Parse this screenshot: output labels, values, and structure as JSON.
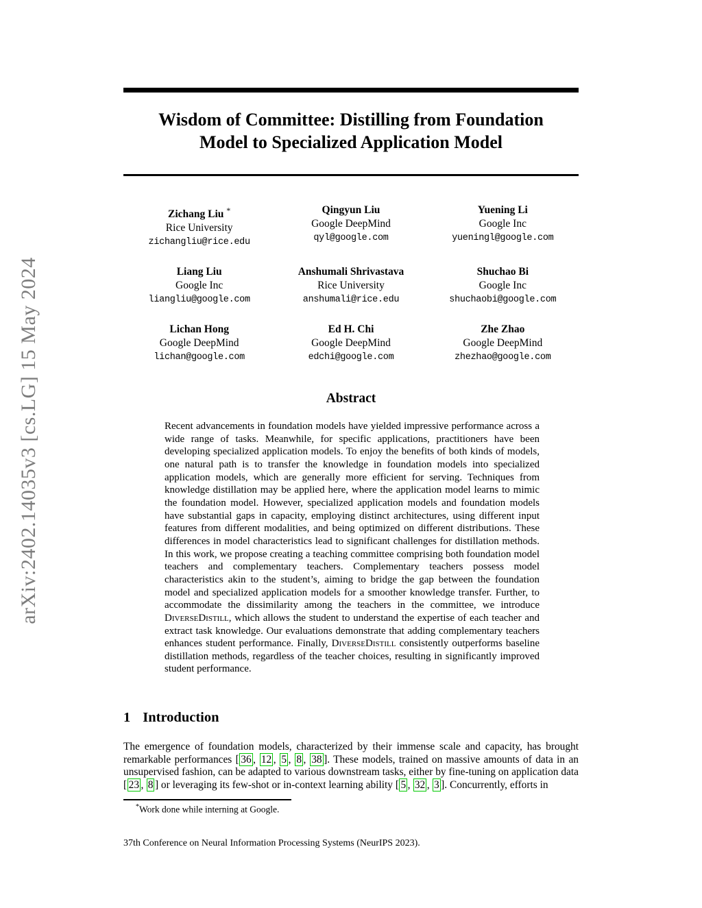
{
  "watermark": "arXiv:2402.14035v3  [cs.LG]  15 May 2024",
  "title": {
    "line1": "Wisdom of Committee: Distilling from Foundation",
    "line2": "Model to Specialized Application Model"
  },
  "authors": [
    {
      "name": "Zichang Liu",
      "mark": "*",
      "affiliation": "Rice University",
      "email": "zichangliu@rice.edu"
    },
    {
      "name": "Qingyun Liu",
      "mark": "",
      "affiliation": "Google DeepMind",
      "email": "qyl@google.com"
    },
    {
      "name": "Yuening Li",
      "mark": "",
      "affiliation": "Google Inc",
      "email": "yueningl@google.com"
    },
    {
      "name": "Liang Liu",
      "mark": "",
      "affiliation": "Google Inc",
      "email": "liangliu@google.com"
    },
    {
      "name": "Anshumali Shrivastava",
      "mark": "",
      "affiliation": "Rice University",
      "email": "anshumali@rice.edu"
    },
    {
      "name": "Shuchao Bi",
      "mark": "",
      "affiliation": "Google Inc",
      "email": "shuchaobi@google.com"
    },
    {
      "name": "Lichan Hong",
      "mark": "",
      "affiliation": "Google DeepMind",
      "email": "lichan@google.com"
    },
    {
      "name": "Ed H. Chi",
      "mark": "",
      "affiliation": "Google DeepMind",
      "email": "edchi@google.com"
    },
    {
      "name": "Zhe Zhao",
      "mark": "",
      "affiliation": "Google DeepMind",
      "email": "zhezhao@google.com"
    }
  ],
  "abstract": {
    "heading": "Abstract",
    "segments": [
      {
        "t": "Recent advancements in foundation models have yielded impressive performance across a wide range of tasks. Meanwhile, for specific applications, practitioners have been developing specialized application models. To enjoy the benefits of both kinds of models, one natural path is to transfer the knowledge in foundation models into specialized application models, which are generally more efficient for serving. Techniques from knowledge distillation may be applied here, where the application model learns to mimic the foundation model. However, specialized application models and foundation models have substantial gaps in capacity, employing distinct architectures, using different input features from different modalities, and being optimized on different distributions. These differences in model characteristics lead to significant challenges for distillation methods. In this work, we propose creating a teaching committee comprising both foundation model teachers and complementary teachers. Complementary teachers possess model characteristics akin to the student’s, aiming to bridge the gap between the foundation model and specialized application models for a smoother knowledge transfer. Further, to accommodate the dissimilarity among the teachers in the committee, we introduce "
      },
      {
        "sc": "DiverseDistill"
      },
      {
        "t": ", which allows the student to understand the expertise of each teacher and extract task knowledge.  Our evaluations demonstrate that adding complementary teachers enhances student performance. Finally, "
      },
      {
        "sc": "DiverseDistill"
      },
      {
        "t": " consistently outperforms baseline distillation methods, regardless of the teacher choices, resulting in significantly improved student performance."
      }
    ]
  },
  "introduction": {
    "number": "1",
    "heading": "Introduction",
    "segments": [
      {
        "t": "The emergence of foundation models, characterized by their immense scale and capacity, has brought remarkable performances ["
      },
      {
        "c": "36"
      },
      {
        "t": ", "
      },
      {
        "c": "12"
      },
      {
        "t": ", "
      },
      {
        "c": "5"
      },
      {
        "t": ", "
      },
      {
        "c": "8"
      },
      {
        "t": ", "
      },
      {
        "c": "38"
      },
      {
        "t": "]. These models, trained on massive amounts of data in an unsupervised fashion, can be adapted to various downstream tasks, either by fine-tuning on application data ["
      },
      {
        "c": "23"
      },
      {
        "t": ", "
      },
      {
        "c": "8"
      },
      {
        "t": "] or leveraging its few-shot or in-context learning ability ["
      },
      {
        "c": "5"
      },
      {
        "t": ", "
      },
      {
        "c": "32"
      },
      {
        "t": ", "
      },
      {
        "c": "3"
      },
      {
        "t": "]. Concurrently, efforts in"
      }
    ]
  },
  "footnote": {
    "marker": "*",
    "text": "Work done while interning at Google."
  },
  "footer": "37th Conference on Neural Information Processing Systems (NeurIPS 2023).",
  "colors": {
    "citation_green": "#00c800",
    "watermark_gray": "#7d7d7d"
  }
}
